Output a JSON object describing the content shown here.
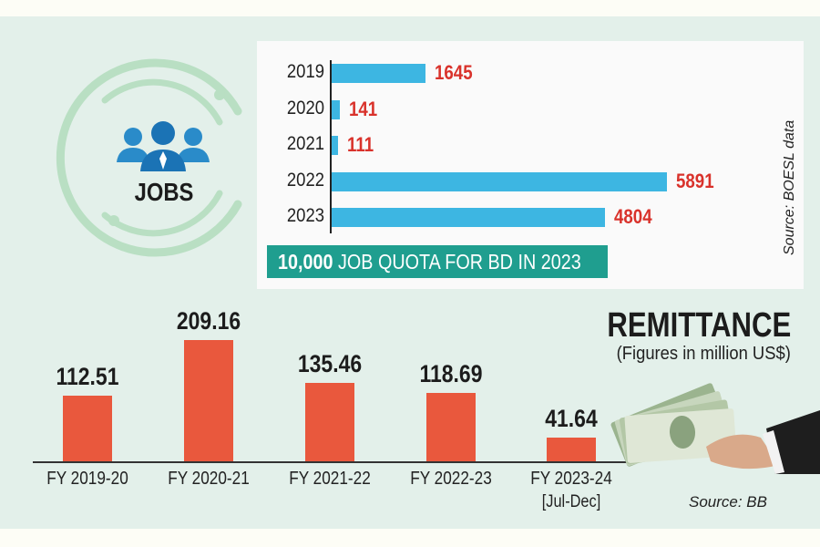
{
  "jobs": {
    "label": "JOBS",
    "banner_bold": "10,000",
    "banner_rest": " JOB QUOTA FOR BD IN 2023",
    "source": "Source: BOESL data"
  },
  "remittance": {
    "title": "REMITTANCE",
    "subtitle": "(Figures in million US$)",
    "source": "Source: BB"
  },
  "colors": {
    "jobs_bar": "#3db6e2",
    "jobs_value": "#d9322b",
    "remit_bar": "#e9583d",
    "banner": "#1f9e8f",
    "background": "#e3f0ea"
  },
  "chart_data": [
    {
      "type": "bar",
      "orientation": "horizontal",
      "title": "JOBS",
      "categories": [
        "2019",
        "2020",
        "2021",
        "2022",
        "2023"
      ],
      "values": [
        1645,
        141,
        111,
        5891,
        4804
      ],
      "xlim": [
        0,
        5891
      ],
      "annotation": "10,000 JOB QUOTA FOR BD IN 2023",
      "source": "Source: BOESL data"
    },
    {
      "type": "bar",
      "orientation": "vertical",
      "title": "REMITTANCE",
      "subtitle": "(Figures in million US$)",
      "categories": [
        "FY 2019-20",
        "FY 2020-21",
        "FY 2021-22",
        "FY 2022-23",
        "FY 2023-24"
      ],
      "category_notes": [
        "",
        "",
        "",
        "",
        "[Jul-Dec]"
      ],
      "values": [
        112.51,
        209.16,
        135.46,
        118.69,
        41.64
      ],
      "ylim": [
        0,
        209.16
      ],
      "source": "Source: BB"
    }
  ]
}
